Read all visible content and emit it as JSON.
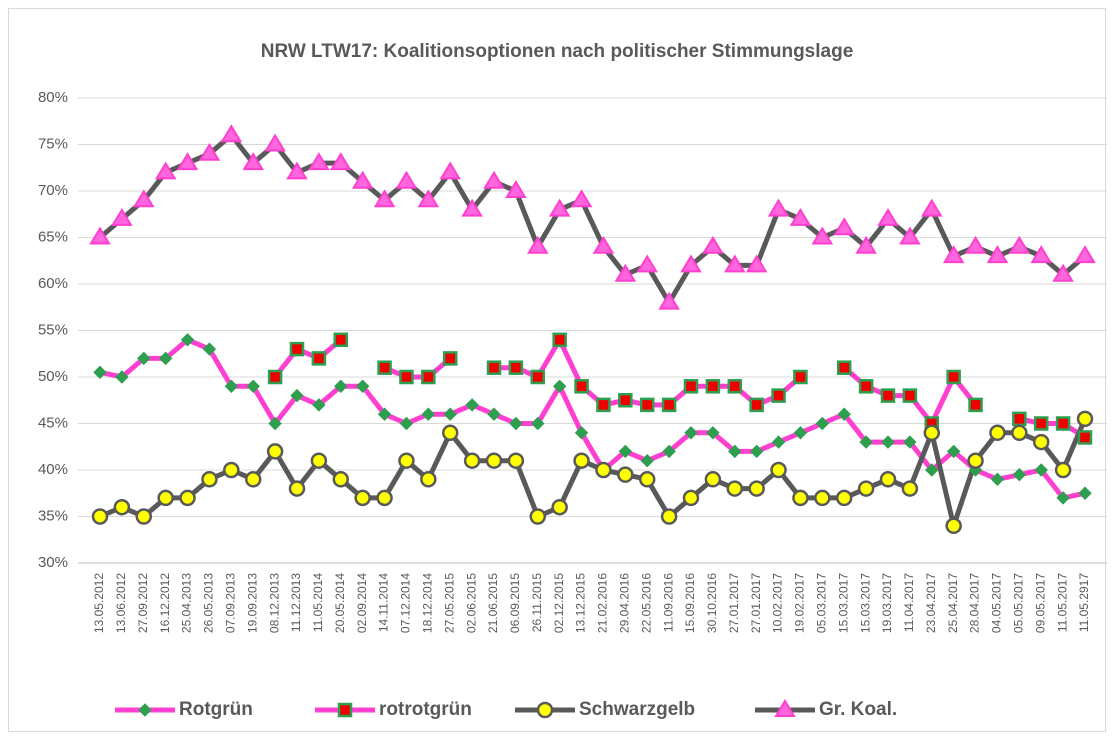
{
  "chart_data": {
    "type": "line",
    "title": "NRW LTW17: Koalitionsoptionen nach politischer Stimmungslage",
    "categories": [
      "13.05.2012",
      "13.06.2012",
      "27.09.2012",
      "16.12.2012",
      "25.04.2013",
      "26.05.2013",
      "07.09.2013",
      "19.09.2013",
      "08.12.2013",
      "11.12.2013",
      "11.05.2014",
      "20.05.2014",
      "02.09.2014",
      "14.11.2014",
      "07.12.2014",
      "18.12.2014",
      "27.05.2015",
      "02.06.2015",
      "21.06.2015",
      "06.09.2015",
      "26.11.2015",
      "02.12.2015",
      "13.12.2015",
      "21.02.2016",
      "29.04.2016",
      "22.05.2016",
      "11.09.2016",
      "15.09.2016",
      "30.10.2016",
      "27.01.2017",
      "27.01.2017",
      "10.02.2017",
      "19.02.2017",
      "05.03.2017",
      "15.03.2017",
      "15.03.2017",
      "19.03.2017",
      "11.04.2017",
      "23.04.2017",
      "25.04.2017",
      "28.04.2017",
      "04.05.2017",
      "05.05.2017",
      "09.05.2017",
      "11.05.2017",
      "11.05.2917"
    ],
    "series": [
      {
        "name": "Rotgrün",
        "color": "#ff3fcf",
        "marker": "diamond",
        "marker_fill": "#2e9e4f",
        "marker_stroke": "#2e9e4f",
        "values": [
          50.5,
          50,
          52,
          52,
          54,
          53,
          49,
          49,
          45,
          48,
          47,
          49,
          49,
          46,
          45,
          46,
          46,
          47,
          46,
          45,
          45,
          49,
          44,
          40,
          42,
          41,
          42,
          44,
          44,
          42,
          42,
          43,
          44,
          45,
          46,
          43,
          43,
          43,
          40,
          42,
          40,
          39,
          39.5,
          40,
          37,
          37.5
        ]
      },
      {
        "name": "rotrotgrün",
        "color": "#ff3fcf",
        "marker": "square",
        "marker_fill": "#ee0000",
        "marker_stroke": "#2e9e4f",
        "values": [
          null,
          null,
          null,
          null,
          null,
          null,
          null,
          null,
          50,
          53,
          52,
          54,
          null,
          51,
          50,
          50,
          52,
          null,
          51,
          51,
          50,
          54,
          49,
          47,
          47.5,
          47,
          47,
          49,
          49,
          49,
          47,
          48,
          50,
          null,
          51,
          49,
          48,
          48,
          45,
          50,
          47,
          null,
          45.5,
          45,
          45,
          43.5
        ]
      },
      {
        "name": "Schwarzgelb",
        "color": "#595959",
        "marker": "circle",
        "marker_fill": "#ffff00",
        "marker_stroke": "#595959",
        "values": [
          35,
          36,
          35,
          37,
          37,
          39,
          40,
          39,
          42,
          38,
          41,
          39,
          37,
          37,
          41,
          39,
          44,
          41,
          41,
          41,
          35,
          36,
          41,
          40,
          39.5,
          39,
          35,
          37,
          39,
          38,
          38,
          40,
          37,
          37,
          37,
          38,
          39,
          38,
          44,
          34,
          41,
          44,
          44,
          43,
          40,
          45.5
        ]
      },
      {
        "name": "Gr. Koal.",
        "color": "#595959",
        "marker": "triangle",
        "marker_fill": "#ff66dd",
        "marker_stroke": "#ff3fcf",
        "values": [
          65,
          67,
          69,
          72,
          73,
          74,
          76,
          73,
          75,
          72,
          73,
          73,
          71,
          69,
          71,
          69,
          72,
          68,
          71,
          70,
          64,
          68,
          69,
          64,
          61,
          62,
          58,
          62,
          64,
          62,
          62,
          68,
          67,
          65,
          66,
          64,
          67,
          65,
          68,
          63,
          64,
          63,
          64,
          63,
          61,
          63
        ]
      }
    ],
    "ylim": [
      30,
      80
    ],
    "yticks": [
      {
        "value": 30,
        "label": "30%"
      },
      {
        "value": 35,
        "label": "35%"
      },
      {
        "value": 40,
        "label": "40%"
      },
      {
        "value": 45,
        "label": "45%"
      },
      {
        "value": 50,
        "label": "50%"
      },
      {
        "value": 55,
        "label": "55%"
      },
      {
        "value": 60,
        "label": "60%"
      },
      {
        "value": 65,
        "label": "65%"
      },
      {
        "value": 70,
        "label": "70%"
      },
      {
        "value": 75,
        "label": "75%"
      },
      {
        "value": 80,
        "label": "80%"
      }
    ],
    "grid": true,
    "legend": "bottom"
  }
}
